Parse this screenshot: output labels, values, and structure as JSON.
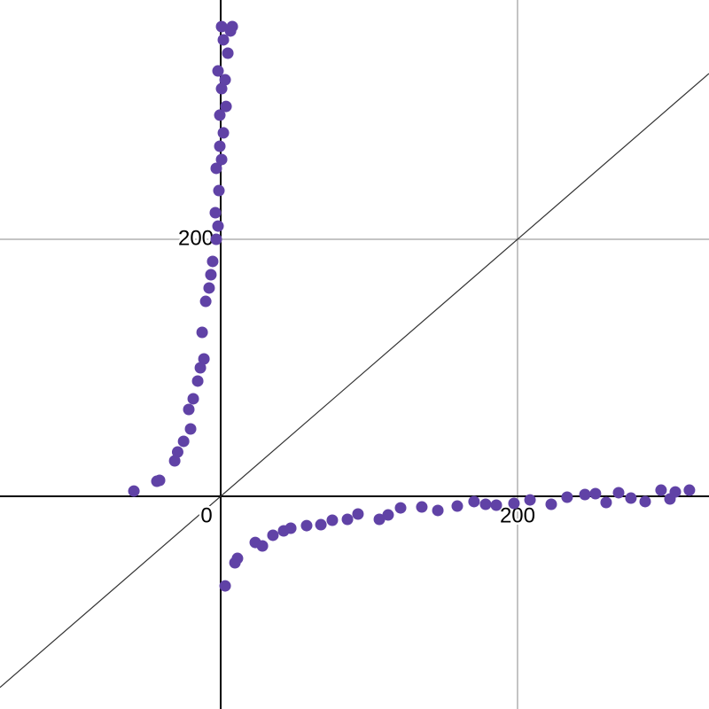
{
  "chart_data": {
    "type": "scatter",
    "color": "#6042a6",
    "xlim": [
      -148.7,
      329
    ],
    "ylim": [
      -165.5,
      386.2
    ],
    "xticks": [
      0,
      200
    ],
    "yticks": [
      200
    ],
    "grid": true,
    "x": [
      -58.5,
      -43,
      -41.2,
      -31,
      -29,
      -25,
      -20.3,
      -21.5,
      -18.5,
      -15.5,
      -13.7,
      -11.3,
      -12.5,
      -10.1,
      -7.8,
      -6.6,
      -5.4,
      -3,
      -1.8,
      -3.6,
      -1.2,
      -3,
      0.6,
      -0.6,
      1.8,
      -0.6,
      3.6,
      0.6,
      3,
      -1.8,
      4.8,
      1.8,
      6.6,
      0.6,
      7.8,
      3,
      9.6,
      11.3,
      23.3,
      28.1,
      35.2,
      42.4,
      47.2,
      57.9,
      67.5,
      75.2,
      85.4,
      92.5,
      106.9,
      112.8,
      121.2,
      135.5,
      146.3,
      159.4,
      170.7,
      178.5,
      185.7,
      197.6,
      208.4,
      222.7,
      233.4,
      245.4,
      252.5,
      259.7,
      268.1,
      276.4,
      286,
      296.7,
      306.3,
      315.8,
      302.7
    ],
    "values": [
      4.1,
      11.7,
      12.4,
      27.6,
      34.5,
      42.8,
      52.4,
      67.6,
      75.9,
      89.7,
      100,
      106.9,
      127.6,
      151.7,
      162.1,
      172.4,
      182.8,
      200,
      210.3,
      220.7,
      237.9,
      255.2,
      262.1,
      272.4,
      282.8,
      296.6,
      303.4,
      317.2,
      324.1,
      331,
      344.8,
      355.2,
      362.1,
      365.5,
      365.5,
      -69.7,
      -51.7,
      -48.3,
      -35.9,
      -38.6,
      -30.3,
      -26.9,
      -24.8,
      -22.8,
      -22.1,
      -18.6,
      -17.9,
      -13.8,
      -17.9,
      -14.5,
      -9,
      -8.3,
      -11,
      -7.6,
      -4.1,
      -6.2,
      -6.9,
      -5.5,
      -2.8,
      -6.2,
      -0.7,
      1.4,
      2.1,
      -4.8,
      2.8,
      -1.4,
      -4.1,
      4.8,
      3.4,
      4.8,
      -2.1
    ]
  }
}
